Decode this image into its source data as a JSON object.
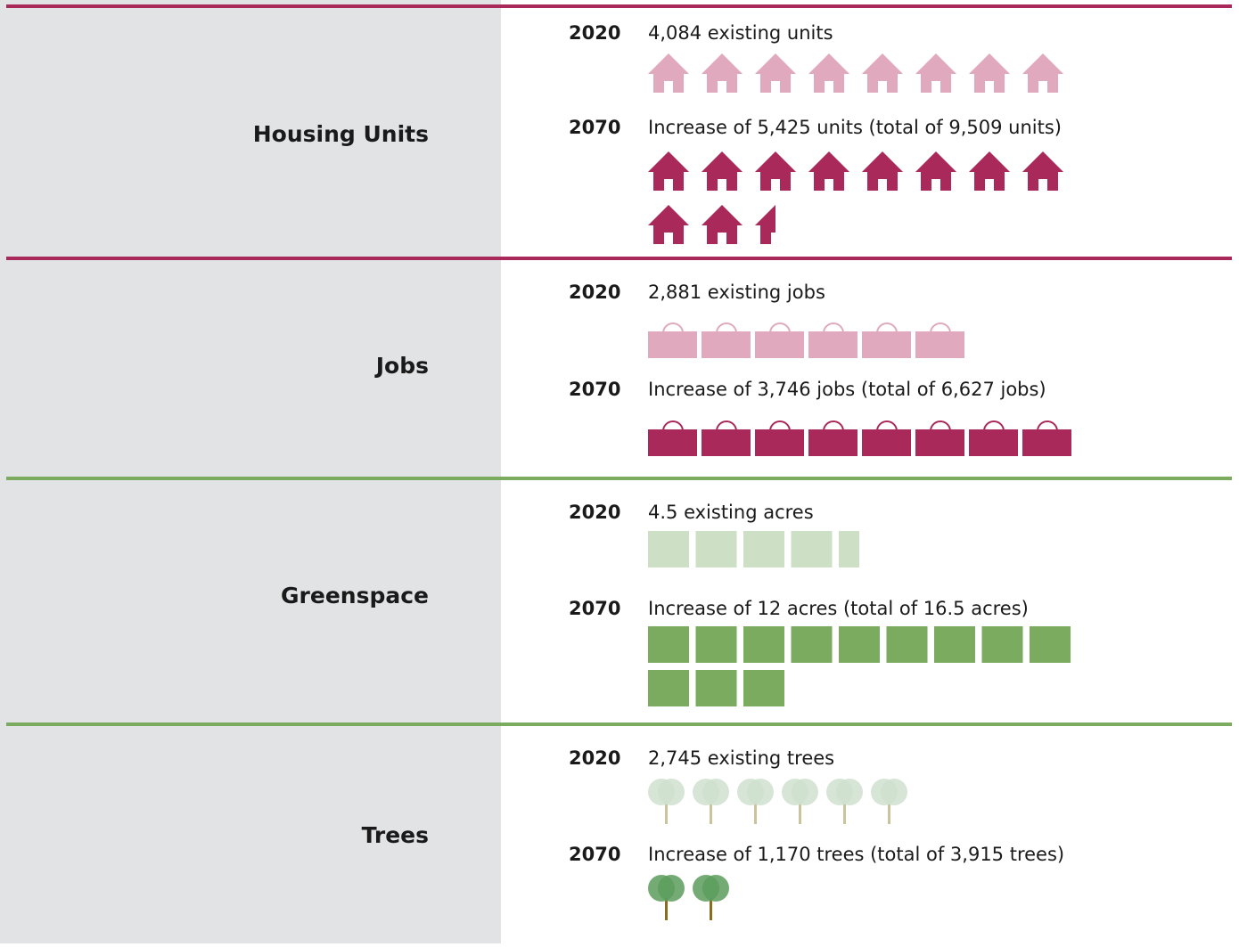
{
  "sections": [
    {
      "label": "Housing Units",
      "icon": "house",
      "line_color": "#a8295a",
      "entries": [
        {
          "year": "2020",
          "text": "4,084 existing units",
          "icons": 8,
          "color": "#e0a9bd"
        },
        {
          "year": "2070",
          "text": "Increase of 5,425 units (total of 9,509 units)",
          "icons": 10.5,
          "color": "#a8295a"
        }
      ]
    },
    {
      "label": "Jobs",
      "icon": "bag",
      "line_color": "#a8295a",
      "entries": [
        {
          "year": "2020",
          "text": "2,881 existing jobs",
          "icons": 6,
          "color": "#e0a9bd"
        },
        {
          "year": "2070",
          "text": "Increase of 3,746 jobs (total of 6,627 jobs)",
          "icons": 8,
          "color": "#a8295a"
        }
      ]
    },
    {
      "label": "Greenspace",
      "icon": "square",
      "line_color": "#7aab5e",
      "entries": [
        {
          "year": "2020",
          "text": "4.5 existing acres",
          "icons": 4.5,
          "color": "#cddfc5"
        },
        {
          "year": "2070",
          "text": "Increase of 12 acres (total of 16.5 acres)",
          "icons": 12,
          "color": "#7aab5e"
        }
      ]
    },
    {
      "label": "Trees",
      "icon": "tree",
      "line_color": "#7aab5e",
      "entries": [
        {
          "year": "2020",
          "text": "2,745 existing trees",
          "icons": 6,
          "color": "#cfe1cf"
        },
        {
          "year": "2070",
          "text": "Increase of 1,170 trees (total of 3,915 trees)",
          "icons": 2,
          "color": "#5c9c5c"
        }
      ]
    }
  ]
}
